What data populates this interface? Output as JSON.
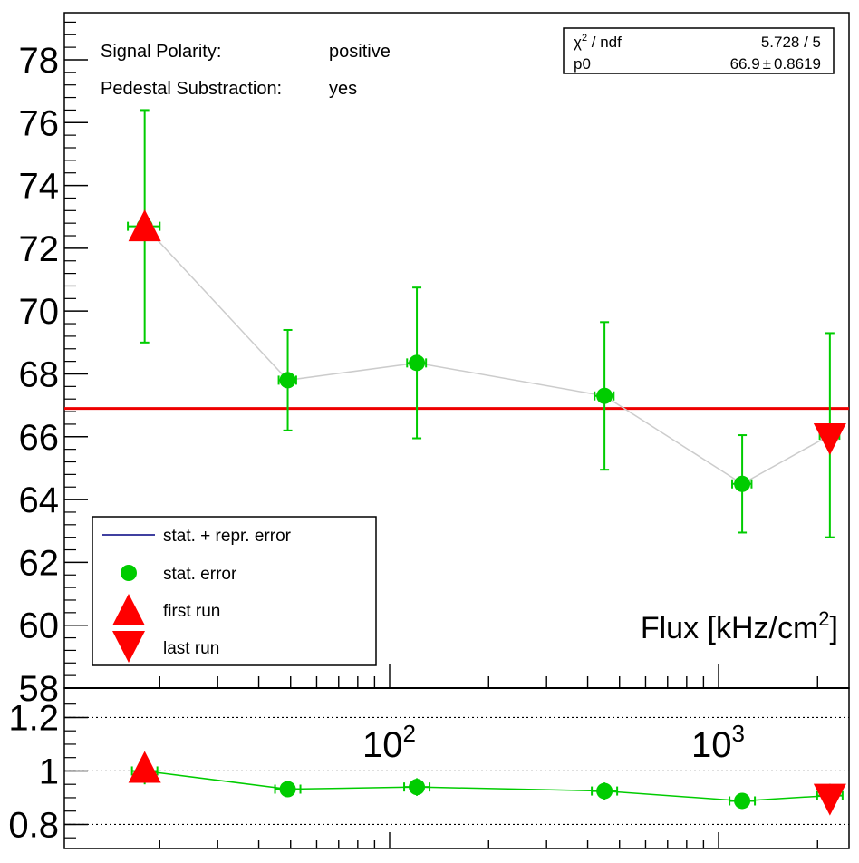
{
  "chart_data": [
    {
      "type": "scatter",
      "panel": "main",
      "xlabel": "Flux [kHz/cm",
      "xlabel_sup": "2",
      "xlabel_close": "]",
      "ylim": [
        58,
        79.5
      ],
      "yticks": [
        58,
        60,
        62,
        64,
        66,
        68,
        70,
        72,
        74,
        76,
        78
      ],
      "xscale": "log",
      "xlim": [
        16,
        2500
      ],
      "annotations": {
        "polarity_label": "Signal Polarity:",
        "polarity_value": "positive",
        "pedestal_label": "Pedestal Substraction:",
        "pedestal_value": "yes"
      },
      "fit": {
        "chi2_label": "χ",
        "chi2_sup": "2",
        "chi2_rest": " / ndf",
        "chi2_value": "5.728 / 5",
        "p0_label": "p0",
        "p0_value": "66.9",
        "p0_pm": "±",
        "p0_err": "0.8619",
        "constant": 66.9,
        "color": "#ee0000"
      },
      "series": [
        {
          "points": [
            {
              "x": 18,
              "xerr": 2,
              "y": 72.7,
              "yerr": 3.7
            },
            {
              "x": 49,
              "xerr": 3,
              "y": 67.8,
              "yerr": 1.6
            },
            {
              "x": 121,
              "xerr": 8,
              "y": 68.35,
              "yerr": 2.4
            },
            {
              "x": 450,
              "xerr": 30,
              "y": 67.3,
              "yerr": 2.35
            },
            {
              "x": 1180,
              "xerr": 80,
              "y": 64.5,
              "yerr": 1.55
            },
            {
              "x": 2180,
              "xerr": 150,
              "y": 66.05,
              "yerr": 3.25
            }
          ],
          "color": "#00cc00",
          "line_color": "#cccccc"
        }
      ],
      "first_run": {
        "x": 18,
        "y": 72.6
      },
      "last_run": {
        "x": 2180,
        "y": 66.05
      },
      "legend": {
        "placement": "bottom-left",
        "entries": [
          "stat. + repr. error",
          "stat. error",
          "first run",
          "last run"
        ]
      }
    },
    {
      "type": "line",
      "panel": "ratio",
      "ylim": [
        0.71,
        1.31
      ],
      "yticks": [
        0.8,
        1,
        1.2
      ],
      "ytick_labels": [
        "0.8",
        "1",
        "1.2"
      ],
      "gridlines": [
        0.8,
        1.0,
        1.2
      ],
      "xticks": [
        {
          "base": "10",
          "exp": "2",
          "value": 100
        },
        {
          "base": "10",
          "exp": "3",
          "value": 1000
        }
      ],
      "values": [
        {
          "x": 18,
          "y": 1.0,
          "yerr": 0.05
        },
        {
          "x": 49,
          "y": 0.932,
          "yerr": 0.022
        },
        {
          "x": 121,
          "y": 0.94,
          "yerr": 0.033
        },
        {
          "x": 450,
          "y": 0.925,
          "yerr": 0.032
        },
        {
          "x": 1180,
          "y": 0.888,
          "yerr": 0.02
        },
        {
          "x": 2180,
          "y": 0.908,
          "yerr": 0.044
        }
      ],
      "color": "#00cc00"
    }
  ]
}
